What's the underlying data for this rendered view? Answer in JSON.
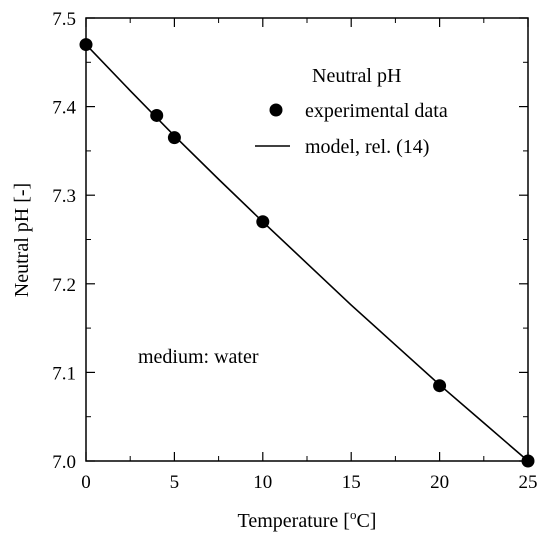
{
  "chart_data": {
    "type": "scatter",
    "title": "",
    "xlabel_main": "Temperature [",
    "xlabel_sup": "o",
    "xlabel_tail": "C]",
    "ylabel": "Neutral pH [-]",
    "xlim": [
      0,
      25
    ],
    "ylim": [
      7.0,
      7.5
    ],
    "x_ticks": [
      0,
      5,
      10,
      15,
      20,
      25
    ],
    "y_ticks": [
      7.0,
      7.1,
      7.2,
      7.3,
      7.4,
      7.5
    ],
    "y_tick_labels": [
      "7.0",
      "7.1",
      "7.2",
      "7.3",
      "7.4",
      "7.5"
    ],
    "x_minor_step": 2.5,
    "y_minor_step": 0.05,
    "grid": false,
    "legend": {
      "title": "Neutral pH",
      "position": "top-right",
      "entries": [
        {
          "label": "experimental data",
          "marker": "circle"
        },
        {
          "label": "model, rel. (14)",
          "marker": "line"
        }
      ]
    },
    "annotation": "medium: water",
    "series": [
      {
        "name": "experimental data",
        "style": "markers",
        "x": [
          0,
          4,
          5,
          10,
          20,
          25
        ],
        "y": [
          7.47,
          7.39,
          7.365,
          7.27,
          7.085,
          7.0
        ]
      },
      {
        "name": "model, rel. (14)",
        "style": "line",
        "x": [
          0,
          2.5,
          5,
          7.5,
          10,
          12.5,
          15,
          17.5,
          20,
          22.5,
          25
        ],
        "y": [
          7.47,
          7.418,
          7.367,
          7.318,
          7.27,
          7.223,
          7.176,
          7.131,
          7.086,
          7.043,
          7.0
        ]
      }
    ],
    "colors": {
      "ink": "#000000",
      "background": "#ffffff"
    }
  }
}
